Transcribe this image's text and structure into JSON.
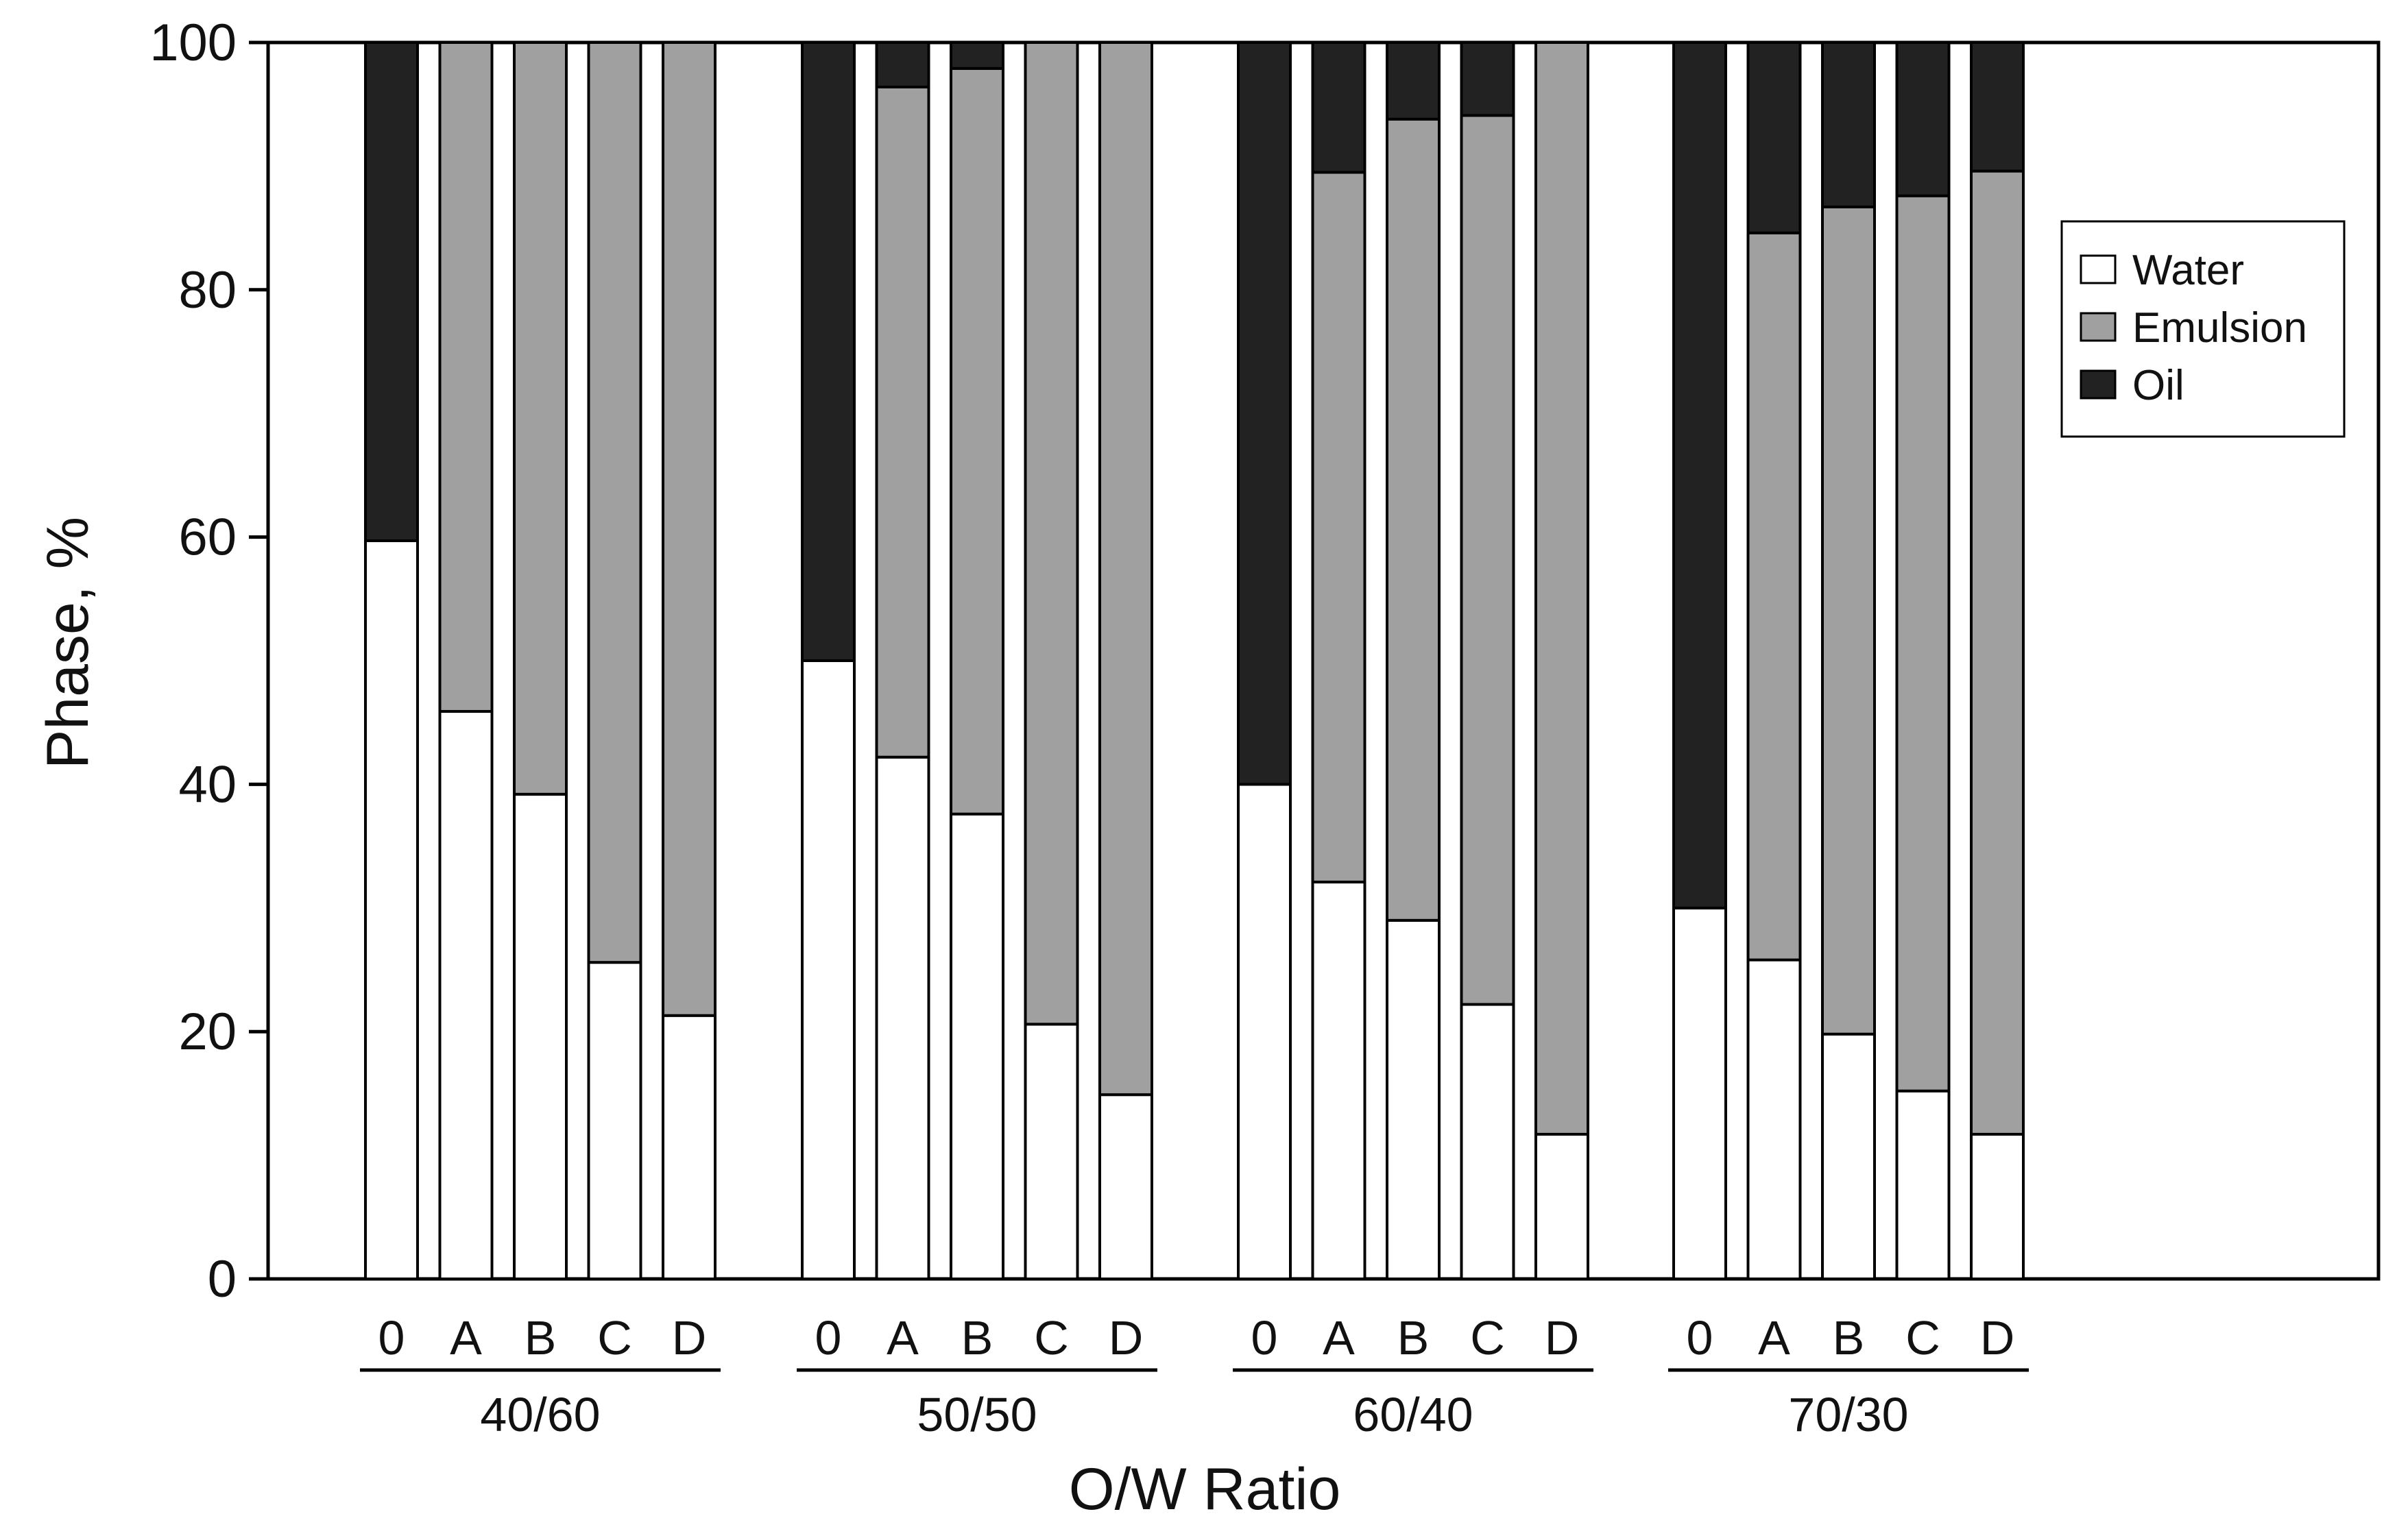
{
  "chart_data": {
    "type": "bar",
    "stacked": true,
    "xlabel": "O/W Ratio",
    "ylabel": "Phase, %",
    "ylim": [
      0,
      100
    ],
    "yticks": [
      0,
      20,
      40,
      60,
      80,
      100
    ],
    "grid": false,
    "legend_position": "top-right",
    "groups": [
      {
        "label": "40/60",
        "categories": [
          "0",
          "A",
          "B",
          "C",
          "D"
        ]
      },
      {
        "label": "50/50",
        "categories": [
          "0",
          "A",
          "B",
          "C",
          "D"
        ]
      },
      {
        "label": "60/40",
        "categories": [
          "0",
          "A",
          "B",
          "C",
          "D"
        ]
      },
      {
        "label": "70/30",
        "categories": [
          "0",
          "A",
          "B",
          "C",
          "D"
        ]
      }
    ],
    "series": [
      {
        "name": "Water",
        "color": "#ffffff",
        "values": [
          59.7,
          45.9,
          39.2,
          25.6,
          21.3,
          50.0,
          42.2,
          37.6,
          20.6,
          14.9,
          40.0,
          32.1,
          29.0,
          22.2,
          11.7,
          30.0,
          25.8,
          19.8,
          15.2,
          11.7
        ]
      },
      {
        "name": "Emulsion",
        "color": "#a0a0a0",
        "values": [
          0.0,
          54.1,
          60.8,
          74.4,
          78.7,
          0.0,
          54.2,
          60.3,
          79.4,
          85.1,
          0.0,
          57.4,
          64.8,
          71.9,
          88.3,
          0.0,
          58.8,
          66.9,
          72.4,
          77.9
        ]
      },
      {
        "name": "Oil",
        "color": "#222222",
        "values": [
          40.3,
          0.0,
          0.0,
          0.0,
          0.0,
          50.0,
          3.6,
          2.1,
          0.0,
          0.0,
          60.0,
          10.5,
          6.2,
          5.9,
          0.0,
          70.0,
          15.4,
          13.3,
          12.4,
          10.4
        ]
      }
    ]
  }
}
